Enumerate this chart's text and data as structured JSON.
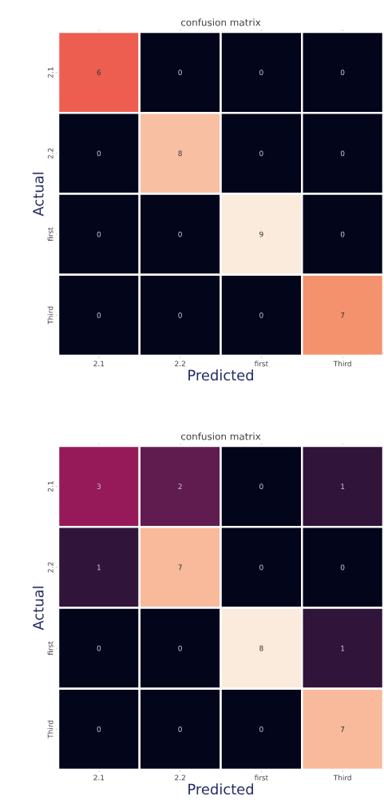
{
  "chart_data": [
    {
      "type": "heatmap",
      "title": "confusion matrix",
      "xlabel": "Predicted",
      "ylabel": "Actual",
      "categories": [
        "2.1",
        "2.2",
        "first",
        "Third"
      ],
      "y_categories": [
        "2.1",
        "2.2",
        "first",
        "Third"
      ],
      "data_labels": true,
      "cells": [
        [
          6,
          0,
          0,
          0
        ],
        [
          0,
          8,
          0,
          0
        ],
        [
          0,
          0,
          9,
          0
        ],
        [
          0,
          0,
          0,
          7
        ]
      ]
    },
    {
      "type": "heatmap",
      "title": "confusion matrix",
      "xlabel": "Predicted",
      "ylabel": "Actual",
      "categories": [
        "2.1",
        "2.2",
        "first",
        "Third"
      ],
      "y_categories": [
        "2.1",
        "2.2",
        "first",
        "Third"
      ],
      "data_labels": true,
      "cells": [
        [
          3,
          2,
          0,
          1
        ],
        [
          1,
          7,
          0,
          0
        ],
        [
          0,
          0,
          8,
          1
        ],
        [
          0,
          0,
          0,
          7
        ]
      ]
    }
  ]
}
